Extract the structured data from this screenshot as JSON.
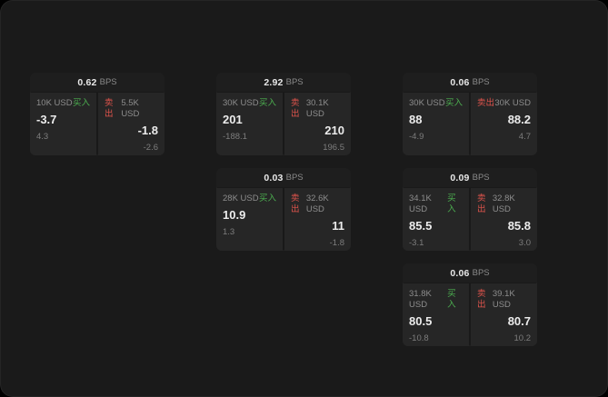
{
  "labels": {
    "bps_unit": "BPS",
    "buy": "买入",
    "sell": "卖出"
  },
  "colors": {
    "buy_green": "#4caf50",
    "sell_red": "#e0544c",
    "panel_bg": "#262626",
    "card_bg": "#191919",
    "app_bg": "#1a1a1a"
  },
  "cards": [
    {
      "bps": "0.62",
      "buy_amount": "10K USD",
      "sell_amount": "5.5K USD",
      "buy_price": "-3.7",
      "sell_price": "-1.8",
      "buy_sub": "4.3",
      "sell_sub": "-2.6"
    },
    {
      "bps": "2.92",
      "buy_amount": "30K USD",
      "sell_amount": "30.1K USD",
      "buy_price": "201",
      "sell_price": "210",
      "buy_sub": "-188.1",
      "sell_sub": "196.5"
    },
    {
      "bps": "0.06",
      "buy_amount": "30K USD",
      "sell_amount": "30K USD",
      "buy_price": "88",
      "sell_price": "88.2",
      "buy_sub": "-4.9",
      "sell_sub": "4.7"
    },
    {
      "bps": "0.03",
      "buy_amount": "28K USD",
      "sell_amount": "32.6K USD",
      "buy_price": "10.9",
      "sell_price": "11",
      "buy_sub": "1.3",
      "sell_sub": "-1.8"
    },
    {
      "bps": "0.09",
      "buy_amount": "34.1K USD",
      "sell_amount": "32.8K USD",
      "buy_price": "85.5",
      "sell_price": "85.8",
      "buy_sub": "-3.1",
      "sell_sub": "3.0"
    },
    {
      "bps": "0.06",
      "buy_amount": "31.8K USD",
      "sell_amount": "39.1K USD",
      "buy_price": "80.5",
      "sell_price": "80.7",
      "buy_sub": "-10.8",
      "sell_sub": "10.2"
    }
  ]
}
